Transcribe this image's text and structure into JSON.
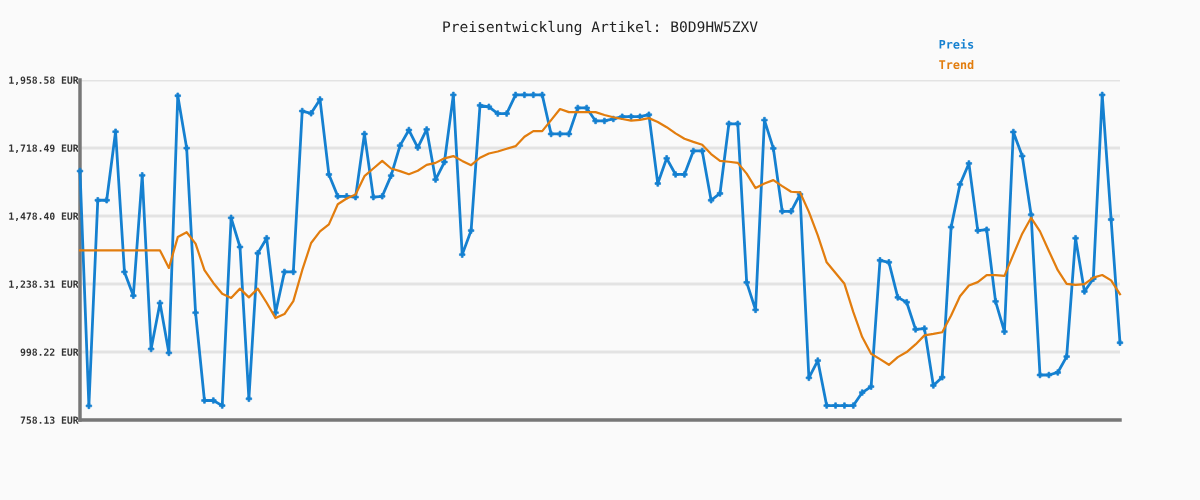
{
  "chart_data": {
    "type": "line",
    "title": "Preisentwicklung Artikel: B0D9HW5ZXV",
    "categories": [
      null,
      null,
      null,
      null,
      null,
      null,
      null,
      null,
      null,
      null,
      null,
      null,
      null,
      null,
      null,
      null,
      null,
      null,
      null,
      null,
      null,
      null,
      null,
      null,
      null,
      null,
      null,
      null,
      null,
      null,
      null,
      null,
      null,
      null,
      null,
      null,
      null,
      null,
      null,
      null,
      null,
      null,
      null,
      null,
      null,
      null,
      null,
      null,
      null,
      null,
      null,
      null,
      null,
      null,
      null,
      null,
      null,
      null,
      null,
      null,
      null,
      null,
      null,
      null,
      null,
      null,
      null,
      null,
      null,
      null,
      null,
      null,
      null,
      null,
      null,
      null,
      null,
      null,
      null,
      null,
      null,
      null,
      null,
      null,
      null,
      null,
      null,
      null,
      null,
      null,
      null,
      null,
      null,
      null,
      null,
      null,
      null,
      null,
      null,
      null,
      null,
      null,
      null,
      null,
      null,
      null,
      null,
      null,
      null,
      null,
      null,
      null,
      null,
      null,
      null,
      null,
      null,
      null
    ],
    "ylim": [
      758.13,
      1958.58
    ],
    "yticks": [
      {
        "value": 758.13,
        "label": "758.13 EUR"
      },
      {
        "value": 998.22,
        "label": "998.22 EUR"
      },
      {
        "value": 1238.31,
        "label": "1,238.31 EUR"
      },
      {
        "value": 1478.4,
        "label": "1,478.40 EUR"
      },
      {
        "value": 1718.49,
        "label": "1,718.49 EUR"
      },
      {
        "value": 1958.58,
        "label": "1,958.58 EUR"
      }
    ],
    "grid": "y",
    "legend": "top right",
    "line_style": "solid",
    "marker": "cross",
    "series": [
      {
        "name": "Preis",
        "color": "#1580d0",
        "values": [
          1637,
          808,
          1534,
          1534,
          1776,
          1281,
          1197,
          1622,
          1009,
          1171,
          995,
          1903,
          1718,
          1137,
          827,
          827,
          809,
          1472,
          1369,
          833,
          1347,
          1400,
          1137,
          1281,
          1281,
          1849,
          1841,
          1890,
          1625,
          1548,
          1548,
          1545,
          1768,
          1545,
          1548,
          1621,
          1727,
          1782,
          1720,
          1784,
          1607,
          1669,
          1906,
          1342,
          1427,
          1869,
          1864,
          1840,
          1840,
          1906,
          1906,
          1906,
          1906,
          1768,
          1768,
          1768,
          1860,
          1860,
          1814,
          1814,
          1821,
          1829,
          1829,
          1829,
          1836,
          1593,
          1682,
          1625,
          1625,
          1708,
          1708,
          1534,
          1558,
          1804,
          1804,
          1244,
          1147,
          1817,
          1717,
          1495,
          1495,
          1555,
          907,
          968,
          809,
          809,
          809,
          809,
          855,
          876,
          1322,
          1315,
          1191,
          1174,
          1078,
          1081,
          880,
          909,
          1439,
          1590,
          1664,
          1427,
          1430,
          1177,
          1070,
          1775,
          1690,
          1483,
          917,
          917,
          926,
          982,
          1400,
          1212,
          1257,
          1906,
          1466,
          1031
        ]
      },
      {
        "name": "Trend",
        "color": "#e27d0e",
        "marker": "none",
        "values": [
          1357,
          1357,
          1357,
          1357,
          1357,
          1357,
          1357,
          1357,
          1357,
          1357,
          1295,
          1404,
          1421,
          1381,
          1287,
          1242,
          1204,
          1189,
          1222,
          1191,
          1222,
          1172,
          1118,
          1132,
          1178,
          1287,
          1383,
          1424,
          1449,
          1520,
          1540,
          1554,
          1619,
          1646,
          1673,
          1646,
          1637,
          1626,
          1638,
          1659,
          1666,
          1682,
          1690,
          1673,
          1658,
          1684,
          1699,
          1706,
          1716,
          1725,
          1758,
          1778,
          1778,
          1817,
          1856,
          1845,
          1845,
          1845,
          1845,
          1835,
          1827,
          1821,
          1815,
          1818,
          1824,
          1810,
          1792,
          1770,
          1751,
          1740,
          1730,
          1697,
          1673,
          1670,
          1666,
          1628,
          1577,
          1593,
          1605,
          1584,
          1564,
          1562,
          1493,
          1410,
          1315,
          1277,
          1239,
          1139,
          1051,
          992,
          973,
          953,
          980,
          998,
          1025,
          1057,
          1062,
          1068,
          1127,
          1195,
          1233,
          1245,
          1270,
          1270,
          1267,
          1342,
          1416,
          1472,
          1424,
          1355,
          1287,
          1239,
          1235,
          1238,
          1261,
          1270,
          1251,
          1202
        ]
      }
    ]
  }
}
